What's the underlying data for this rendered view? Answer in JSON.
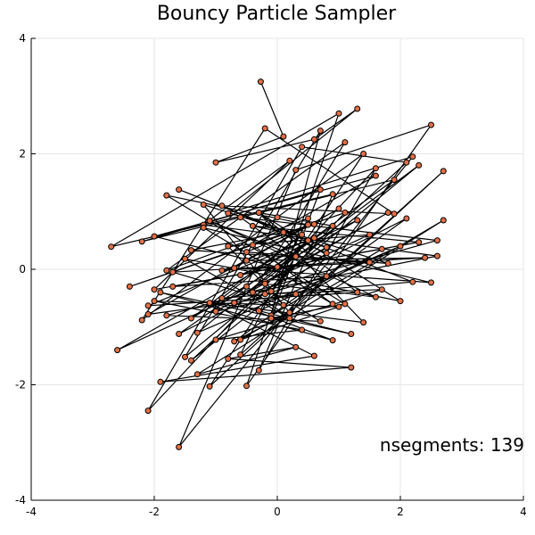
{
  "chart_data": {
    "type": "line",
    "title": "Bouncy Particle Sampler",
    "xlabel": "",
    "ylabel": "",
    "xlim": [
      -4,
      4
    ],
    "ylim": [
      -4,
      4
    ],
    "xticks": [
      -4,
      -2,
      0,
      2,
      4
    ],
    "yticks": [
      -4,
      -2,
      0,
      2,
      4
    ],
    "xtick_labels": [
      "-4",
      "-2",
      "0",
      "2",
      "4"
    ],
    "ytick_labels": [
      "-4",
      "-2",
      "0",
      "2",
      "4"
    ],
    "grid": true,
    "legend": "none",
    "annotation": "nsegments: 139",
    "marker_color": "#e26f46",
    "line_color": "#000000",
    "series": [
      {
        "x": [
          -0.27,
          0.1,
          -1.0,
          0.6,
          1.3,
          -0.8,
          2.2,
          -1.6,
          0.3,
          2.5,
          -0.5,
          1.0,
          -2.7,
          0.9,
          -0.3,
          1.6,
          -2.1,
          0.4,
          2.1,
          -1.4,
          0.8,
          -0.9,
          1.9,
          -0.2,
          -2.2,
          0.0,
          1.4,
          -1.1,
          2.7,
          -0.6,
          0.5,
          -1.8,
          1.1,
          -0.4,
          2.6,
          -1.2,
          0.2,
          -2.0,
          1.7,
          -0.1,
          0.7,
          -1.5,
          2.3,
          -0.7,
          0.9,
          -1.9,
          1.2,
          -0.3,
          2.0,
          -1.3,
          0.6,
          -2.6,
          1.5,
          -0.8,
          0.1,
          -1.7,
          2.4,
          -0.5,
          1.0,
          -2.1,
          0.3,
          -1.0,
          1.8,
          -0.2,
          0.8,
          -1.6,
          2.2,
          -0.9,
          0.4,
          -1.4,
          1.3,
          -0.6,
          0.0,
          -2.0,
          1.6,
          -0.4,
          0.9,
          -1.2,
          2.5,
          -0.7,
          0.5,
          -1.8,
          1.1,
          -0.1,
          0.7,
          -2.2,
          1.9,
          -0.5,
          0.2,
          -1.5,
          2.0,
          -0.3,
          1.4,
          -1.1,
          0.6,
          -1.9,
          1.2,
          -0.8,
          0.3,
          -1.3,
          2.7,
          -0.6,
          1.0,
          -2.0,
          0.4,
          -1.0,
          1.7,
          -0.2,
          0.8,
          -1.7,
          2.3,
          -0.4,
          0.1,
          -1.4,
          1.5,
          -0.9,
          0.5,
          -2.1,
          1.3,
          -0.3,
          0.9,
          -1.6,
          2.1,
          -0.7,
          0.2,
          -1.2,
          1.8,
          -0.5,
          0.6,
          -2.4,
          1.1,
          -0.1,
          0.7,
          -1.8,
          2.6,
          -0.6,
          0.3,
          -1.1,
          1.6,
          -0.2
        ],
        "y": [
          3.25,
          2.3,
          1.85,
          2.25,
          2.78,
          0.97,
          1.95,
          -3.08,
          1.72,
          2.5,
          -2.02,
          2.7,
          0.39,
          1.3,
          -1.75,
          1.75,
          -2.45,
          2.12,
          1.85,
          -1.58,
          0.28,
          1.1,
          0.96,
          2.44,
          -0.88,
          0.9,
          2.0,
          -2.03,
          1.7,
          -1.48,
          0.88,
          -0.02,
          2.2,
          -0.4,
          0.23,
          0.77,
          1.88,
          -0.35,
          0.35,
          -0.8,
          2.4,
          -1.52,
          1.8,
          -0.58,
          -1.23,
          -0.4,
          -1.12,
          -0.72,
          0.4,
          -1.1,
          0.54,
          -1.4,
          0.6,
          0.4,
          -0.62,
          -0.05,
          0.2,
          0.15,
          1.05,
          -0.78,
          -0.43,
          -0.73,
          0.98,
          -0.22,
          0.38,
          1.38,
          -0.22,
          -0.5,
          0.6,
          -0.85,
          0.85,
          -0.1,
          0.04,
          0.57,
          1.62,
          0.42,
          -0.6,
          0.72,
          -0.23,
          0.02,
          0.77,
          1.28,
          -0.6,
          -0.85,
          1.38,
          0.48,
          1.55,
          -0.3,
          -0.85,
          0.18,
          -0.55,
          0.98,
          -0.92,
          -0.58,
          -1.5,
          -1.95,
          -1.7,
          -1.55,
          -1.35,
          -1.82,
          0.85,
          -1.22,
          -0.65,
          -0.55,
          -1.05,
          -1.22,
          -0.35,
          -0.43,
          -0.12,
          -0.3,
          0.47,
          0.75,
          0.64,
          0.33,
          0.12,
          -0.02,
          0.5,
          -0.63,
          -0.4,
          0.98,
          0.75,
          -1.12,
          0.88,
          -1.25,
          -0.75,
          1.12,
          0.1,
          0.3,
          0.78,
          -0.3,
          0.98,
          -0.38,
          -0.9,
          -0.8,
          0.5,
          0.9,
          0.22,
          0.84,
          -0.48,
          -0.25
        ]
      }
    ]
  }
}
